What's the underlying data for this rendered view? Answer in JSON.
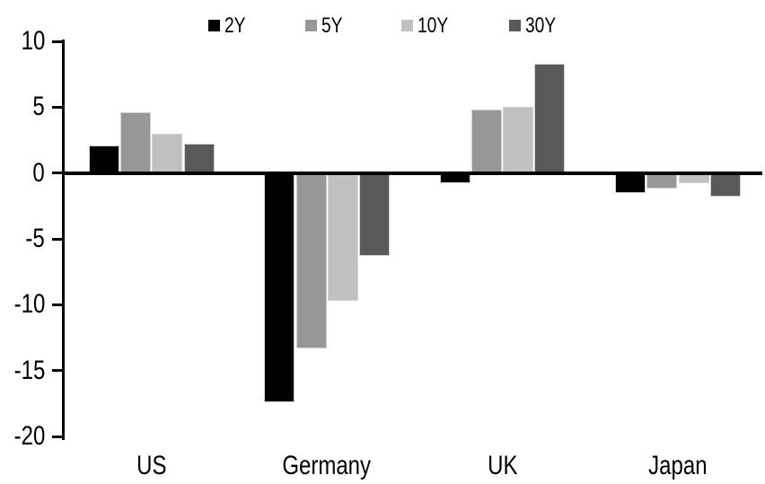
{
  "chart_data": {
    "type": "bar",
    "title": "",
    "subtitle": "",
    "categories": [
      "US",
      "Germany",
      "UK",
      "Japan"
    ],
    "series": [
      {
        "name": "2Y",
        "color": "#000000",
        "values": [
          2.1,
          -17.4,
          -0.8,
          -1.5
        ]
      },
      {
        "name": "5Y",
        "color": "#979797",
        "values": [
          4.6,
          -13.3,
          4.8,
          -1.2
        ]
      },
      {
        "name": "10Y",
        "color": "#c0c0c0",
        "values": [
          3.0,
          -9.7,
          5.0,
          -0.8
        ]
      },
      {
        "name": "30Y",
        "color": "#595959",
        "values": [
          2.2,
          -6.3,
          8.3,
          -1.8
        ]
      }
    ],
    "xlabel": "",
    "ylabel": "",
    "ylim": [
      -20,
      10
    ],
    "yticks": [
      10,
      5,
      0,
      -5,
      -10,
      -15,
      -20
    ],
    "legend_position": "top",
    "grid": false,
    "axis_color": "#000000",
    "background_color": "#ffffff",
    "zero_line": true
  }
}
